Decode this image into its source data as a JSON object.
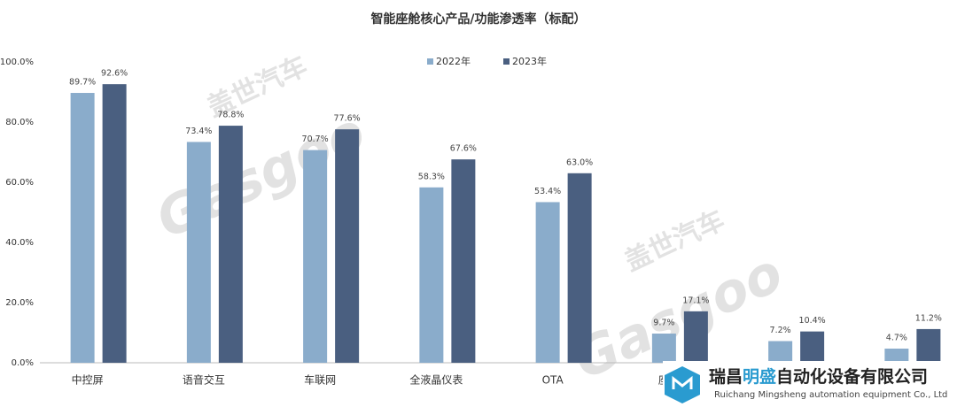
{
  "chart_data": {
    "type": "bar",
    "title": "智能座舱核心产品/功能渗透率（标配）",
    "categories": [
      "中控屏",
      "语音交互",
      "车联网",
      "全液晶仪表",
      "OTA",
      "座舱",
      null,
      null
    ],
    "series": [
      {
        "name": "2022年",
        "color": "#8aaccb",
        "values": [
          89.7,
          73.4,
          70.7,
          58.3,
          53.4,
          9.7,
          7.2,
          4.7
        ],
        "value_labels": [
          "89.7%",
          "73.4%",
          "70.7%",
          "58.3%",
          "53.4%",
          "9.7%",
          "7.2%",
          "4.7%"
        ]
      },
      {
        "name": "2023年",
        "color": "#4a5f80",
        "values": [
          92.6,
          78.8,
          77.6,
          67.6,
          63.0,
          17.1,
          10.4,
          11.2
        ],
        "value_labels": [
          "92.6%",
          "78.8%",
          "77.6%",
          "67.6%",
          "63.0%",
          "17.1%",
          "10.4%",
          "11.2%"
        ]
      }
    ],
    "ylim": [
      0,
      100
    ],
    "yticks": [
      {
        "value": 0,
        "label": "0.0%"
      },
      {
        "value": 20,
        "label": "20.0%"
      },
      {
        "value": 40,
        "label": "40.0%"
      },
      {
        "value": 60,
        "label": "60.0%"
      },
      {
        "value": 80,
        "label": "80.0%"
      },
      {
        "value": 100,
        "label": "100.0%"
      }
    ],
    "legend": "top"
  },
  "watermark": {
    "cn": "盖世汽车",
    "en": "Gasgoo"
  },
  "logo": {
    "name_part1": "瑞昌",
    "name_part2": "明盛",
    "name_part3": "自动化设备有限公司",
    "english": "Ruichang Mingsheng automation equipment Co., Ltd"
  }
}
